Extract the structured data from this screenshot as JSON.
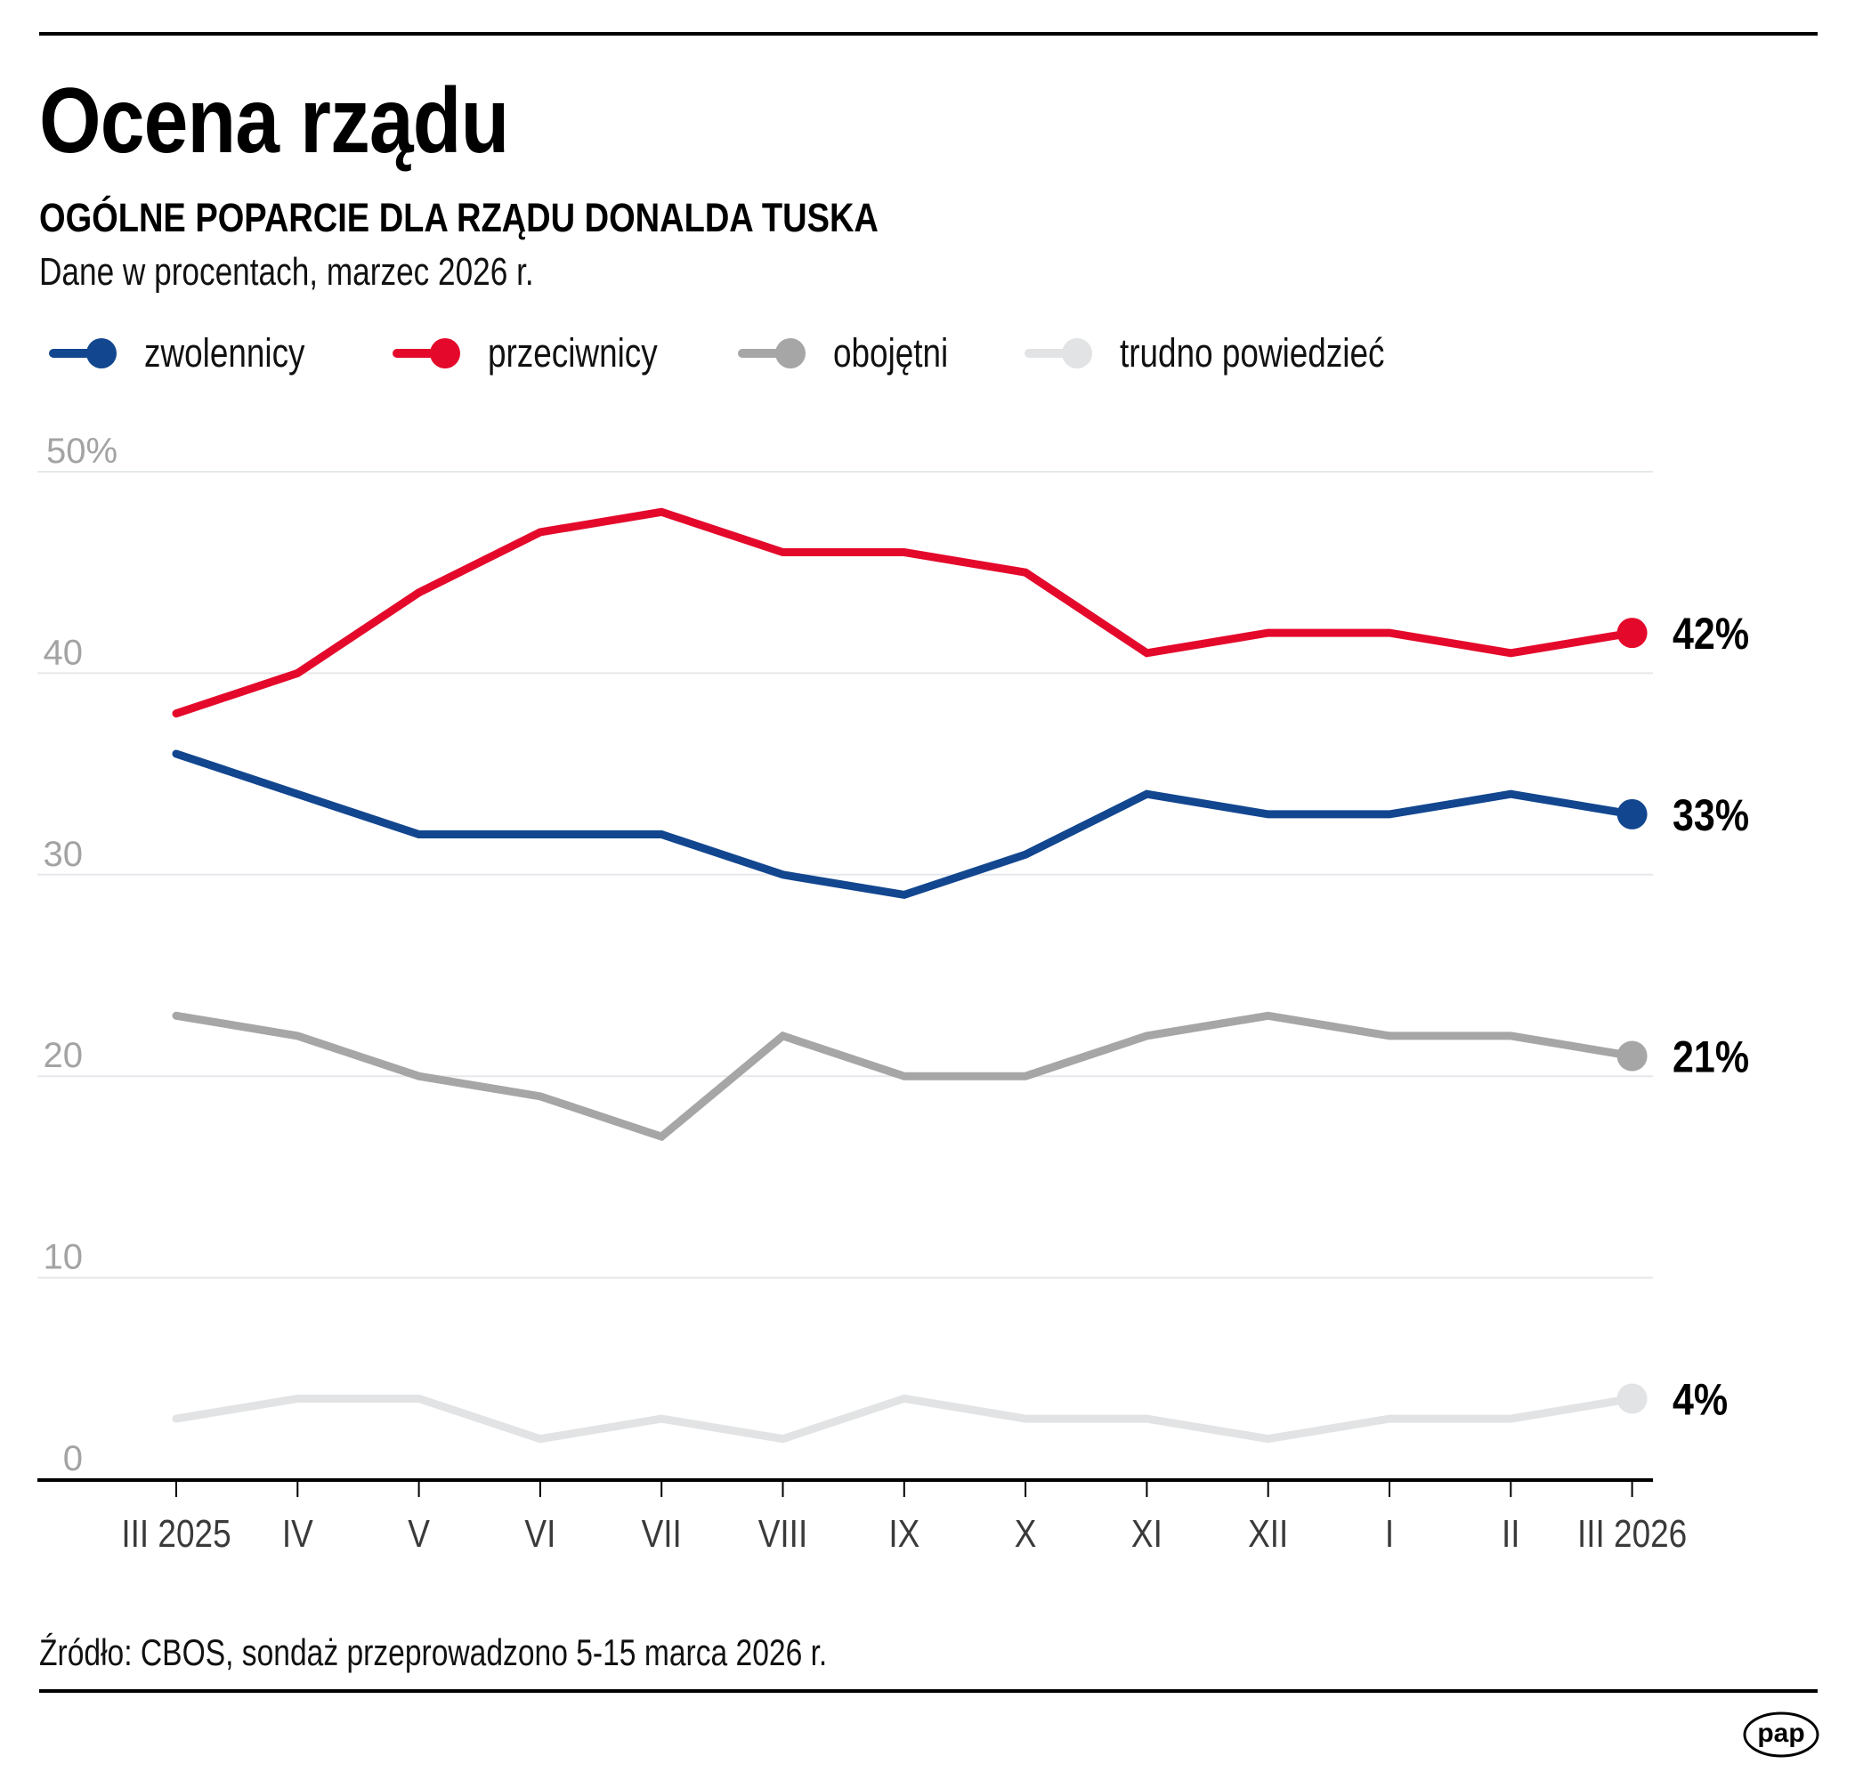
{
  "header": {
    "title": "Ocena rządu",
    "subtitle": "OGÓLNE POPARCIE DLA RZĄDU DONALDA TUSKA",
    "description": "Dane w procentach, marzec 2026 r."
  },
  "legend": [
    {
      "label": "zwolennicy",
      "color": "#12468F"
    },
    {
      "label": "przeciwnicy",
      "color": "#E4092B"
    },
    {
      "label": "obojętni",
      "color": "#A6A6A6"
    },
    {
      "label": "trudno powiedzieć",
      "color": "#E2E3E4"
    }
  ],
  "footer": {
    "source": "Źródło: CBOS, sondaż przeprowadzono 5-15 marca 2026 r.",
    "logo_text": "pap"
  },
  "chart_data": {
    "type": "line",
    "title": "OGÓLNE POPARCIE DLA RZĄDU DONALDA TUSKA",
    "subtitle": "Dane w procentach, marzec 2026 r.",
    "xlabel": "",
    "ylabel": "",
    "categories": [
      "III 2025",
      "IV",
      "V",
      "VI",
      "VII",
      "VIII",
      "IX",
      "X",
      "XI",
      "XII",
      "I",
      "II",
      "III 2026"
    ],
    "ylim": [
      0,
      50
    ],
    "yticks": [
      0,
      10,
      20,
      30,
      40,
      50
    ],
    "ytick_labels": [
      "0",
      "10",
      "20",
      "30",
      "40",
      "50%"
    ],
    "grid": true,
    "legend_position": "top-left",
    "series": [
      {
        "name": "zwolennicy",
        "color": "#12468F",
        "values": [
          36,
          34,
          32,
          32,
          32,
          30,
          29,
          31,
          34,
          33,
          33,
          34,
          33
        ],
        "end_label": "33%"
      },
      {
        "name": "przeciwnicy",
        "color": "#E4092B",
        "values": [
          38,
          40,
          44,
          47,
          48,
          46,
          46,
          45,
          41,
          42,
          42,
          41,
          42
        ],
        "end_label": "42%"
      },
      {
        "name": "obojętni",
        "color": "#A6A6A6",
        "values": [
          23,
          22,
          20,
          19,
          17,
          22,
          20,
          20,
          22,
          23,
          22,
          22,
          21
        ],
        "end_label": "21%"
      },
      {
        "name": "trudno powiedzieć",
        "color": "#E2E3E4",
        "values": [
          3,
          4,
          4,
          2,
          3,
          2,
          4,
          3,
          3,
          2,
          3,
          3,
          4
        ],
        "end_label": "4%"
      }
    ]
  }
}
